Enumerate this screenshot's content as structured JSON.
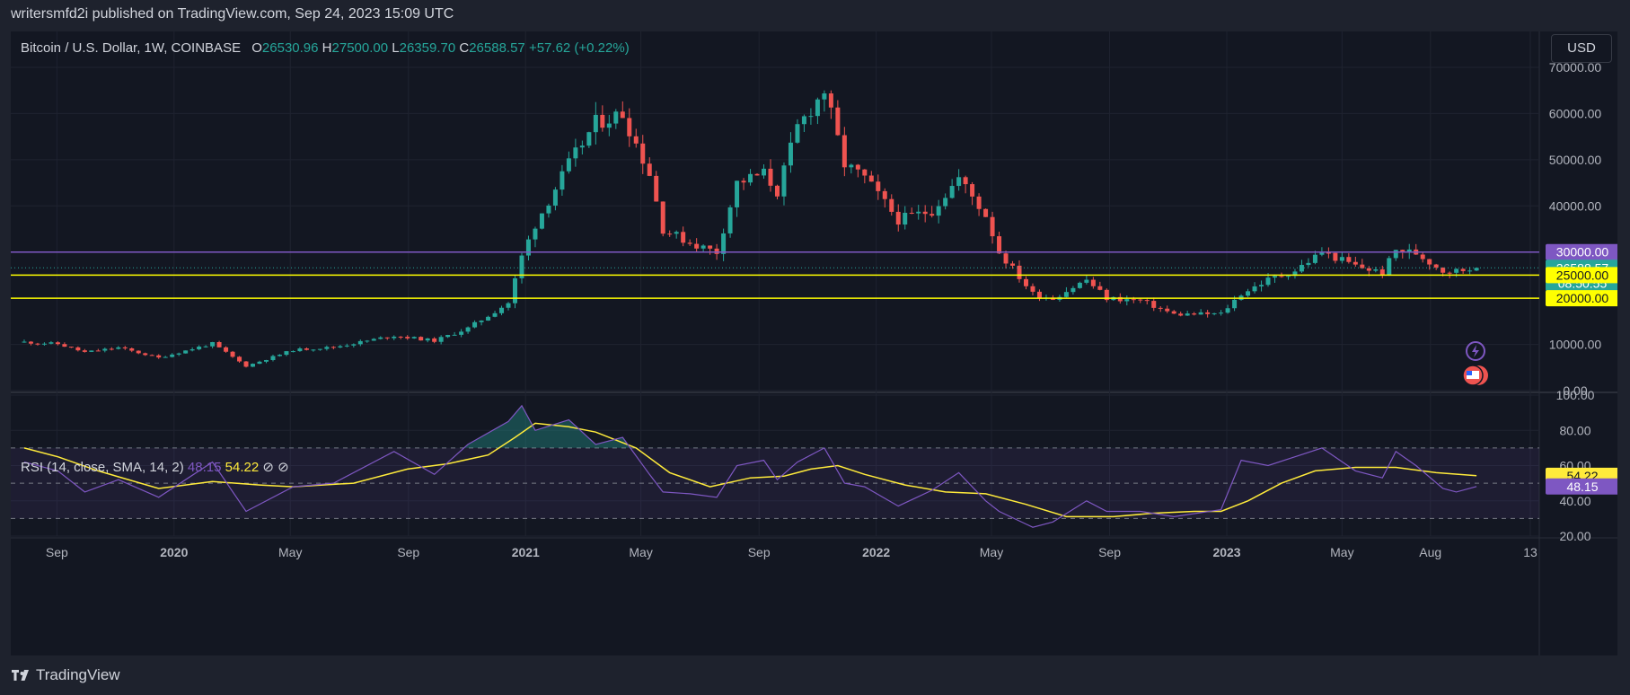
{
  "header": {
    "published": "writersmfd2i published on TradingView.com, Sep 24, 2023 15:09 UTC"
  },
  "legend": {
    "symbol": "Bitcoin / U.S. Dollar, 1W, COINBASE",
    "o_label": "O",
    "o": "26530.96",
    "h_label": "H",
    "h": "27500.00",
    "l_label": "L",
    "l": "26359.70",
    "c_label": "C",
    "c": "26588.57",
    "change": "+57.62 (+0.22%)"
  },
  "currency_button": "USD",
  "rsi_legend": {
    "label": "RSI (14, close, SMA, 14, 2)",
    "rsi": "48.15",
    "sma": "54.22",
    "icon1": "⊘",
    "icon2": "⊘"
  },
  "price_tags": {
    "line_30000": "30000.00",
    "last_price": "26588.57",
    "countdown": "08:50:55",
    "line_25000": "25000.00",
    "line_20000": "20000.00",
    "rsi_sma": "54.22",
    "rsi_value": "48.15"
  },
  "footer": {
    "brand": "TradingView"
  },
  "colors": {
    "up": "#26a69a",
    "down": "#ef5350",
    "purple_line": "#7e57c2",
    "yellow_line": "#ffff00",
    "rsi_line": "#7e57c2",
    "rsi_sma": "#ffeb3b"
  },
  "chart_data": [
    {
      "type": "candlestick",
      "title": "Bitcoin / U.S. Dollar, 1W, COINBASE",
      "y_ticks": [
        "70000.00",
        "60000.00",
        "50000.00",
        "40000.00",
        "30000.00",
        "20000.00",
        "10000.00",
        "0.00"
      ],
      "ylim": [
        0,
        70000
      ],
      "x_ticks": [
        "Sep",
        "2020",
        "May",
        "Sep",
        "2021",
        "May",
        "Sep",
        "2022",
        "May",
        "Sep",
        "2023",
        "May",
        "Aug",
        "13"
      ],
      "horizontal_lines": [
        {
          "value": 30000,
          "color": "purple"
        },
        {
          "value": 25000,
          "color": "yellow"
        },
        {
          "value": 20000,
          "color": "yellow"
        }
      ],
      "close_anchors": [
        [
          "2019-07-29",
          10500
        ],
        [
          "2019-09-02",
          10100
        ],
        [
          "2019-09-30",
          8300
        ],
        [
          "2019-11-04",
          9300
        ],
        [
          "2019-12-16",
          7100
        ],
        [
          "2020-02-10",
          10200
        ],
        [
          "2020-03-16",
          5300
        ],
        [
          "2020-05-04",
          8800
        ],
        [
          "2020-06-15",
          9400
        ],
        [
          "2020-08-17",
          11900
        ],
        [
          "2020-09-28",
          10800
        ],
        [
          "2020-11-02",
          13500
        ],
        [
          "2020-12-14",
          19000
        ],
        [
          "2020-12-28",
          29000
        ],
        [
          "2021-01-11",
          36000
        ],
        [
          "2021-02-15",
          49000
        ],
        [
          "2021-03-15",
          58000
        ],
        [
          "2021-04-12",
          60000
        ],
        [
          "2021-05-10",
          47000
        ],
        [
          "2021-05-24",
          35000
        ],
        [
          "2021-06-21",
          32000
        ],
        [
          "2021-07-19",
          30000
        ],
        [
          "2021-08-09",
          45000
        ],
        [
          "2021-09-06",
          47000
        ],
        [
          "2021-09-20",
          43000
        ],
        [
          "2021-10-11",
          57000
        ],
        [
          "2021-11-08",
          65000
        ],
        [
          "2021-11-29",
          49000
        ],
        [
          "2021-12-20",
          46000
        ],
        [
          "2022-01-24",
          37000
        ],
        [
          "2022-02-28",
          39000
        ],
        [
          "2022-03-28",
          46000
        ],
        [
          "2022-04-25",
          38000
        ],
        [
          "2022-05-09",
          30000
        ],
        [
          "2022-06-13",
          21000
        ],
        [
          "2022-07-04",
          20000
        ],
        [
          "2022-08-08",
          24000
        ],
        [
          "2022-08-29",
          20000
        ],
        [
          "2022-10-03",
          19500
        ],
        [
          "2022-11-07",
          16500
        ],
        [
          "2022-12-26",
          16600
        ],
        [
          "2023-01-16",
          21000
        ],
        [
          "2023-02-13",
          24000
        ],
        [
          "2023-03-13",
          26000
        ],
        [
          "2023-04-10",
          30000
        ],
        [
          "2023-05-15",
          27000
        ],
        [
          "2023-06-12",
          25500
        ],
        [
          "2023-06-26",
          30400
        ],
        [
          "2023-07-17",
          29800
        ],
        [
          "2023-08-14",
          26000
        ],
        [
          "2023-08-28",
          25900
        ],
        [
          "2023-09-18",
          26588
        ]
      ]
    },
    {
      "type": "line",
      "title": "RSI (14, close, SMA, 14, 2)",
      "y_ticks": [
        "100.00",
        "80.00",
        "60.00",
        "40.00",
        "20.00"
      ],
      "ylim": [
        20,
        100
      ],
      "bands": [
        30,
        50,
        70
      ],
      "series": [
        {
          "name": "RSI",
          "points": [
            [
              "2019-07-29",
              62
            ],
            [
              "2019-09-02",
              57
            ],
            [
              "2019-09-30",
              45
            ],
            [
              "2019-11-04",
              52
            ],
            [
              "2019-12-16",
              42
            ],
            [
              "2020-02-10",
              62
            ],
            [
              "2020-03-16",
              34
            ],
            [
              "2020-05-04",
              48
            ],
            [
              "2020-06-15",
              50
            ],
            [
              "2020-08-17",
              68
            ],
            [
              "2020-09-28",
              55
            ],
            [
              "2020-11-02",
              72
            ],
            [
              "2020-12-14",
              85
            ],
            [
              "2020-12-28",
              94
            ],
            [
              "2021-01-11",
              80
            ],
            [
              "2021-02-15",
              86
            ],
            [
              "2021-03-15",
              72
            ],
            [
              "2021-04-12",
              76
            ],
            [
              "2021-05-10",
              55
            ],
            [
              "2021-05-24",
              45
            ],
            [
              "2021-06-21",
              44
            ],
            [
              "2021-07-19",
              42
            ],
            [
              "2021-08-09",
              60
            ],
            [
              "2021-09-06",
              63
            ],
            [
              "2021-09-20",
              52
            ],
            [
              "2021-10-11",
              62
            ],
            [
              "2021-11-08",
              70
            ],
            [
              "2021-11-29",
              50
            ],
            [
              "2021-12-20",
              48
            ],
            [
              "2022-01-24",
              37
            ],
            [
              "2022-02-28",
              46
            ],
            [
              "2022-03-28",
              56
            ],
            [
              "2022-04-25",
              40
            ],
            [
              "2022-05-09",
              34
            ],
            [
              "2022-06-13",
              25
            ],
            [
              "2022-07-04",
              28
            ],
            [
              "2022-08-08",
              40
            ],
            [
              "2022-08-29",
              34
            ],
            [
              "2022-10-03",
              34
            ],
            [
              "2022-11-07",
              31
            ],
            [
              "2022-12-26",
              35
            ],
            [
              "2023-01-16",
              63
            ],
            [
              "2023-02-13",
              60
            ],
            [
              "2023-03-13",
              65
            ],
            [
              "2023-04-10",
              70
            ],
            [
              "2023-05-15",
              57
            ],
            [
              "2023-06-12",
              53
            ],
            [
              "2023-06-26",
              68
            ],
            [
              "2023-07-17",
              60
            ],
            [
              "2023-08-14",
              47
            ],
            [
              "2023-08-28",
              45
            ],
            [
              "2023-09-18",
              48.15
            ]
          ]
        },
        {
          "name": "SMA",
          "points": [
            [
              "2019-07-29",
              70
            ],
            [
              "2019-09-02",
              65
            ],
            [
              "2019-10-14",
              57
            ],
            [
              "2019-12-16",
              47
            ],
            [
              "2020-02-10",
              51
            ],
            [
              "2020-03-30",
              49
            ],
            [
              "2020-05-04",
              48
            ],
            [
              "2020-07-06",
              50
            ],
            [
              "2020-08-31",
              58
            ],
            [
              "2020-10-12",
              61
            ],
            [
              "2020-11-23",
              66
            ],
            [
              "2020-12-21",
              76
            ],
            [
              "2021-01-11",
              84
            ],
            [
              "2021-02-15",
              82
            ],
            [
              "2021-03-15",
              79
            ],
            [
              "2021-04-26",
              70
            ],
            [
              "2021-05-31",
              56
            ],
            [
              "2021-07-12",
              48
            ],
            [
              "2021-08-23",
              53
            ],
            [
              "2021-09-27",
              54
            ],
            [
              "2021-10-25",
              58
            ],
            [
              "2021-11-22",
              60
            ],
            [
              "2021-12-20",
              55
            ],
            [
              "2022-01-31",
              49
            ],
            [
              "2022-03-14",
              45
            ],
            [
              "2022-04-25",
              44
            ],
            [
              "2022-06-06",
              38
            ],
            [
              "2022-07-18",
              31
            ],
            [
              "2022-09-05",
              31
            ],
            [
              "2022-10-17",
              33
            ],
            [
              "2022-11-28",
              34
            ],
            [
              "2022-12-26",
              34
            ],
            [
              "2023-01-23",
              40
            ],
            [
              "2023-02-27",
              50
            ],
            [
              "2023-04-03",
              57
            ],
            [
              "2023-05-15",
              59
            ],
            [
              "2023-06-26",
              59
            ],
            [
              "2023-08-07",
              56
            ],
            [
              "2023-09-18",
              54.22
            ]
          ]
        }
      ]
    }
  ]
}
